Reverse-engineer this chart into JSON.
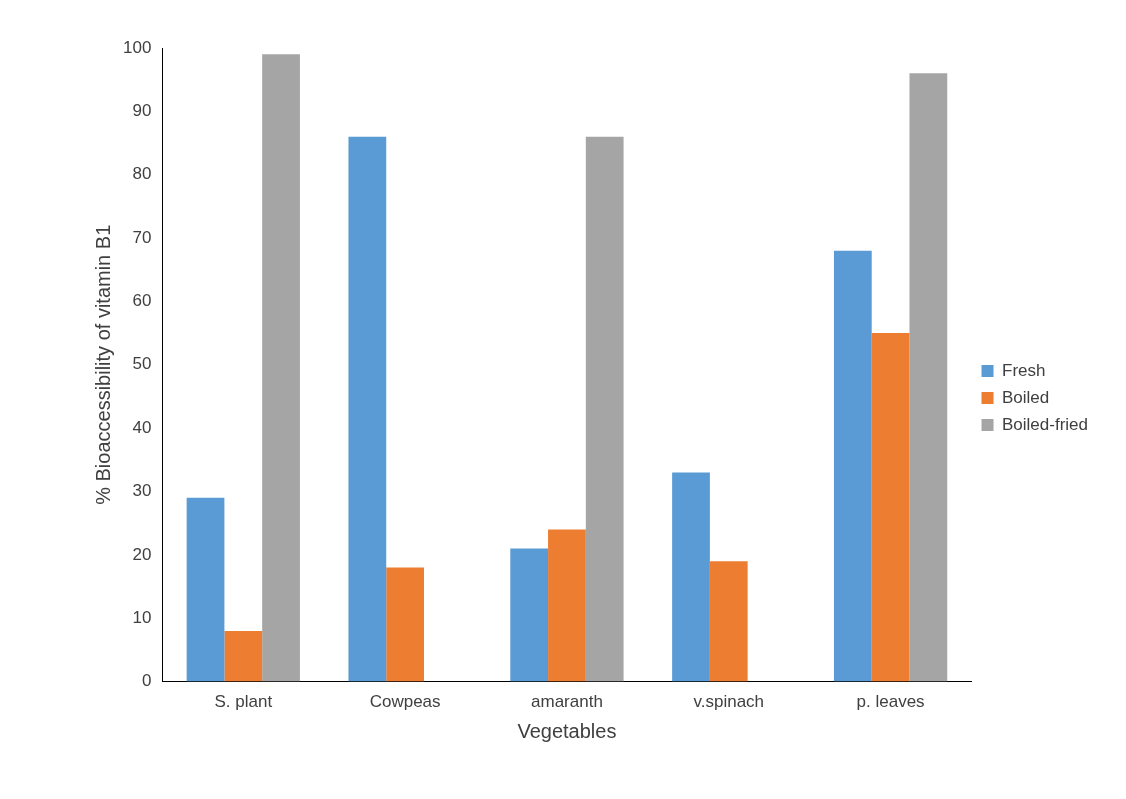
{
  "chart_data": {
    "type": "bar",
    "xlabel": "Vegetables",
    "ylabel": "% Bioaccessibility of vitamin B1",
    "categories": [
      "S. plant",
      "Cowpeas",
      "amaranth",
      "v.spinach",
      "p. leaves"
    ],
    "series": [
      {
        "name": "Fresh",
        "color": "#5b9bd5",
        "values": [
          29,
          86,
          21,
          33,
          68
        ]
      },
      {
        "name": "Boiled",
        "color": "#ed7d31",
        "values": [
          8,
          18,
          24,
          19,
          55
        ]
      },
      {
        "name": "Boiled-fried",
        "color": "#a5a5a5",
        "values": [
          99,
          0,
          86,
          0,
          96
        ]
      }
    ],
    "ylim": [
      0,
      100
    ],
    "yticks": [
      0,
      10,
      20,
      30,
      40,
      50,
      60,
      70,
      80,
      90,
      100
    ],
    "grid": false,
    "legend": "right"
  }
}
